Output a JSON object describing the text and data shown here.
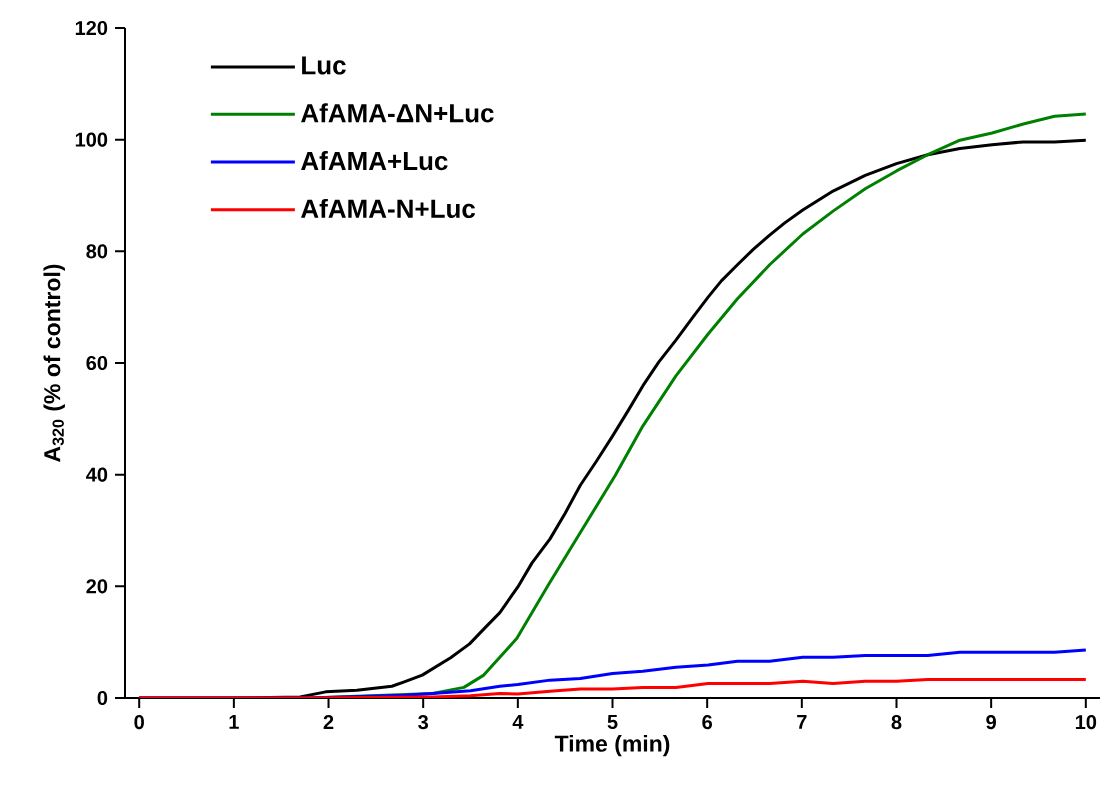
{
  "chart_data": {
    "type": "line",
    "xlabel": "Time (min)",
    "ylabel": "A$_{320}$ (% of control)",
    "xlim": [
      -0.15,
      10.15
    ],
    "ylim": [
      0,
      120
    ],
    "xticks": [
      0,
      1,
      2,
      3,
      4,
      5,
      6,
      7,
      8,
      9,
      10
    ],
    "yticks": [
      0,
      20,
      40,
      60,
      80,
      100,
      120
    ],
    "grid": false,
    "legend": "top left",
    "marker": "none",
    "line_style": "solid",
    "series": [
      {
        "name": "Luc",
        "color": "#000000",
        "x": [
          0,
          1,
          1.7,
          1.97,
          2.3,
          2.67,
          2.8,
          2.99,
          3.29,
          3.49,
          3.66,
          3.81,
          4.0,
          4.15,
          4.34,
          4.5,
          4.66,
          4.83,
          5.0,
          5.17,
          5.32,
          5.49,
          5.67,
          5.84,
          6.01,
          6.15,
          6.32,
          6.49,
          6.66,
          6.82,
          7.01,
          7.33,
          7.67,
          8.0,
          8.33,
          8.67,
          9.01,
          9.34,
          9.67,
          10.0
        ],
        "values": [
          0,
          0,
          0.2,
          1.1,
          1.4,
          2.1,
          2.9,
          4.1,
          7.2,
          9.7,
          12.7,
          15.3,
          19.9,
          24.2,
          28.5,
          33.1,
          38.1,
          42.4,
          46.9,
          51.6,
          55.9,
          60.2,
          64.1,
          68.0,
          71.8,
          74.7,
          77.6,
          80.4,
          82.9,
          85.1,
          87.4,
          90.8,
          93.6,
          95.7,
          97.3,
          98.4,
          99.1,
          99.6,
          99.6,
          99.9
        ]
      },
      {
        "name": "AfAMA-ΔN+Luc",
        "color": "#008000",
        "x": [
          0,
          1.8,
          3.1,
          3.43,
          3.64,
          3.99,
          4.32,
          4.67,
          5.03,
          5.32,
          5.67,
          6.01,
          6.32,
          6.66,
          7.01,
          7.33,
          7.67,
          8.0,
          8.33,
          8.67,
          9.01,
          9.34,
          9.67,
          10.0
        ],
        "values": [
          0,
          0,
          0.8,
          1.9,
          4.1,
          10.7,
          20.2,
          29.9,
          39.9,
          48.7,
          57.7,
          65.2,
          71.5,
          77.6,
          83.1,
          87.2,
          91.2,
          94.4,
          97.3,
          99.9,
          101.2,
          102.8,
          104.2,
          104.6
        ]
      },
      {
        "name": "AfAMA+Luc",
        "color": "#0000ff",
        "x": [
          0,
          1.8,
          2.8,
          3.1,
          3.5,
          3.81,
          4.0,
          4.34,
          4.66,
          5.0,
          5.32,
          5.67,
          6.01,
          6.32,
          6.66,
          7.01,
          7.33,
          7.67,
          8.33,
          8.67,
          9.67,
          10.0
        ],
        "values": [
          0,
          0,
          0.5,
          0.8,
          1.3,
          2.1,
          2.4,
          3.2,
          3.5,
          4.4,
          4.8,
          5.5,
          5.9,
          6.6,
          6.6,
          7.3,
          7.3,
          7.6,
          7.6,
          8.2,
          8.2,
          8.6
        ]
      },
      {
        "name": "AfAMA-N+Luc",
        "color": "#ff0000",
        "x": [
          0,
          1.8,
          3.1,
          3.5,
          3.81,
          4.0,
          4.34,
          4.66,
          5.0,
          5.32,
          5.67,
          6.01,
          6.66,
          7.01,
          7.33,
          7.67,
          8.0,
          8.33,
          10.0
        ],
        "values": [
          0,
          0,
          0.2,
          0.4,
          0.8,
          0.7,
          1.2,
          1.6,
          1.6,
          1.9,
          1.9,
          2.6,
          2.6,
          3.0,
          2.6,
          3.0,
          3.0,
          3.3,
          3.3
        ]
      }
    ]
  }
}
